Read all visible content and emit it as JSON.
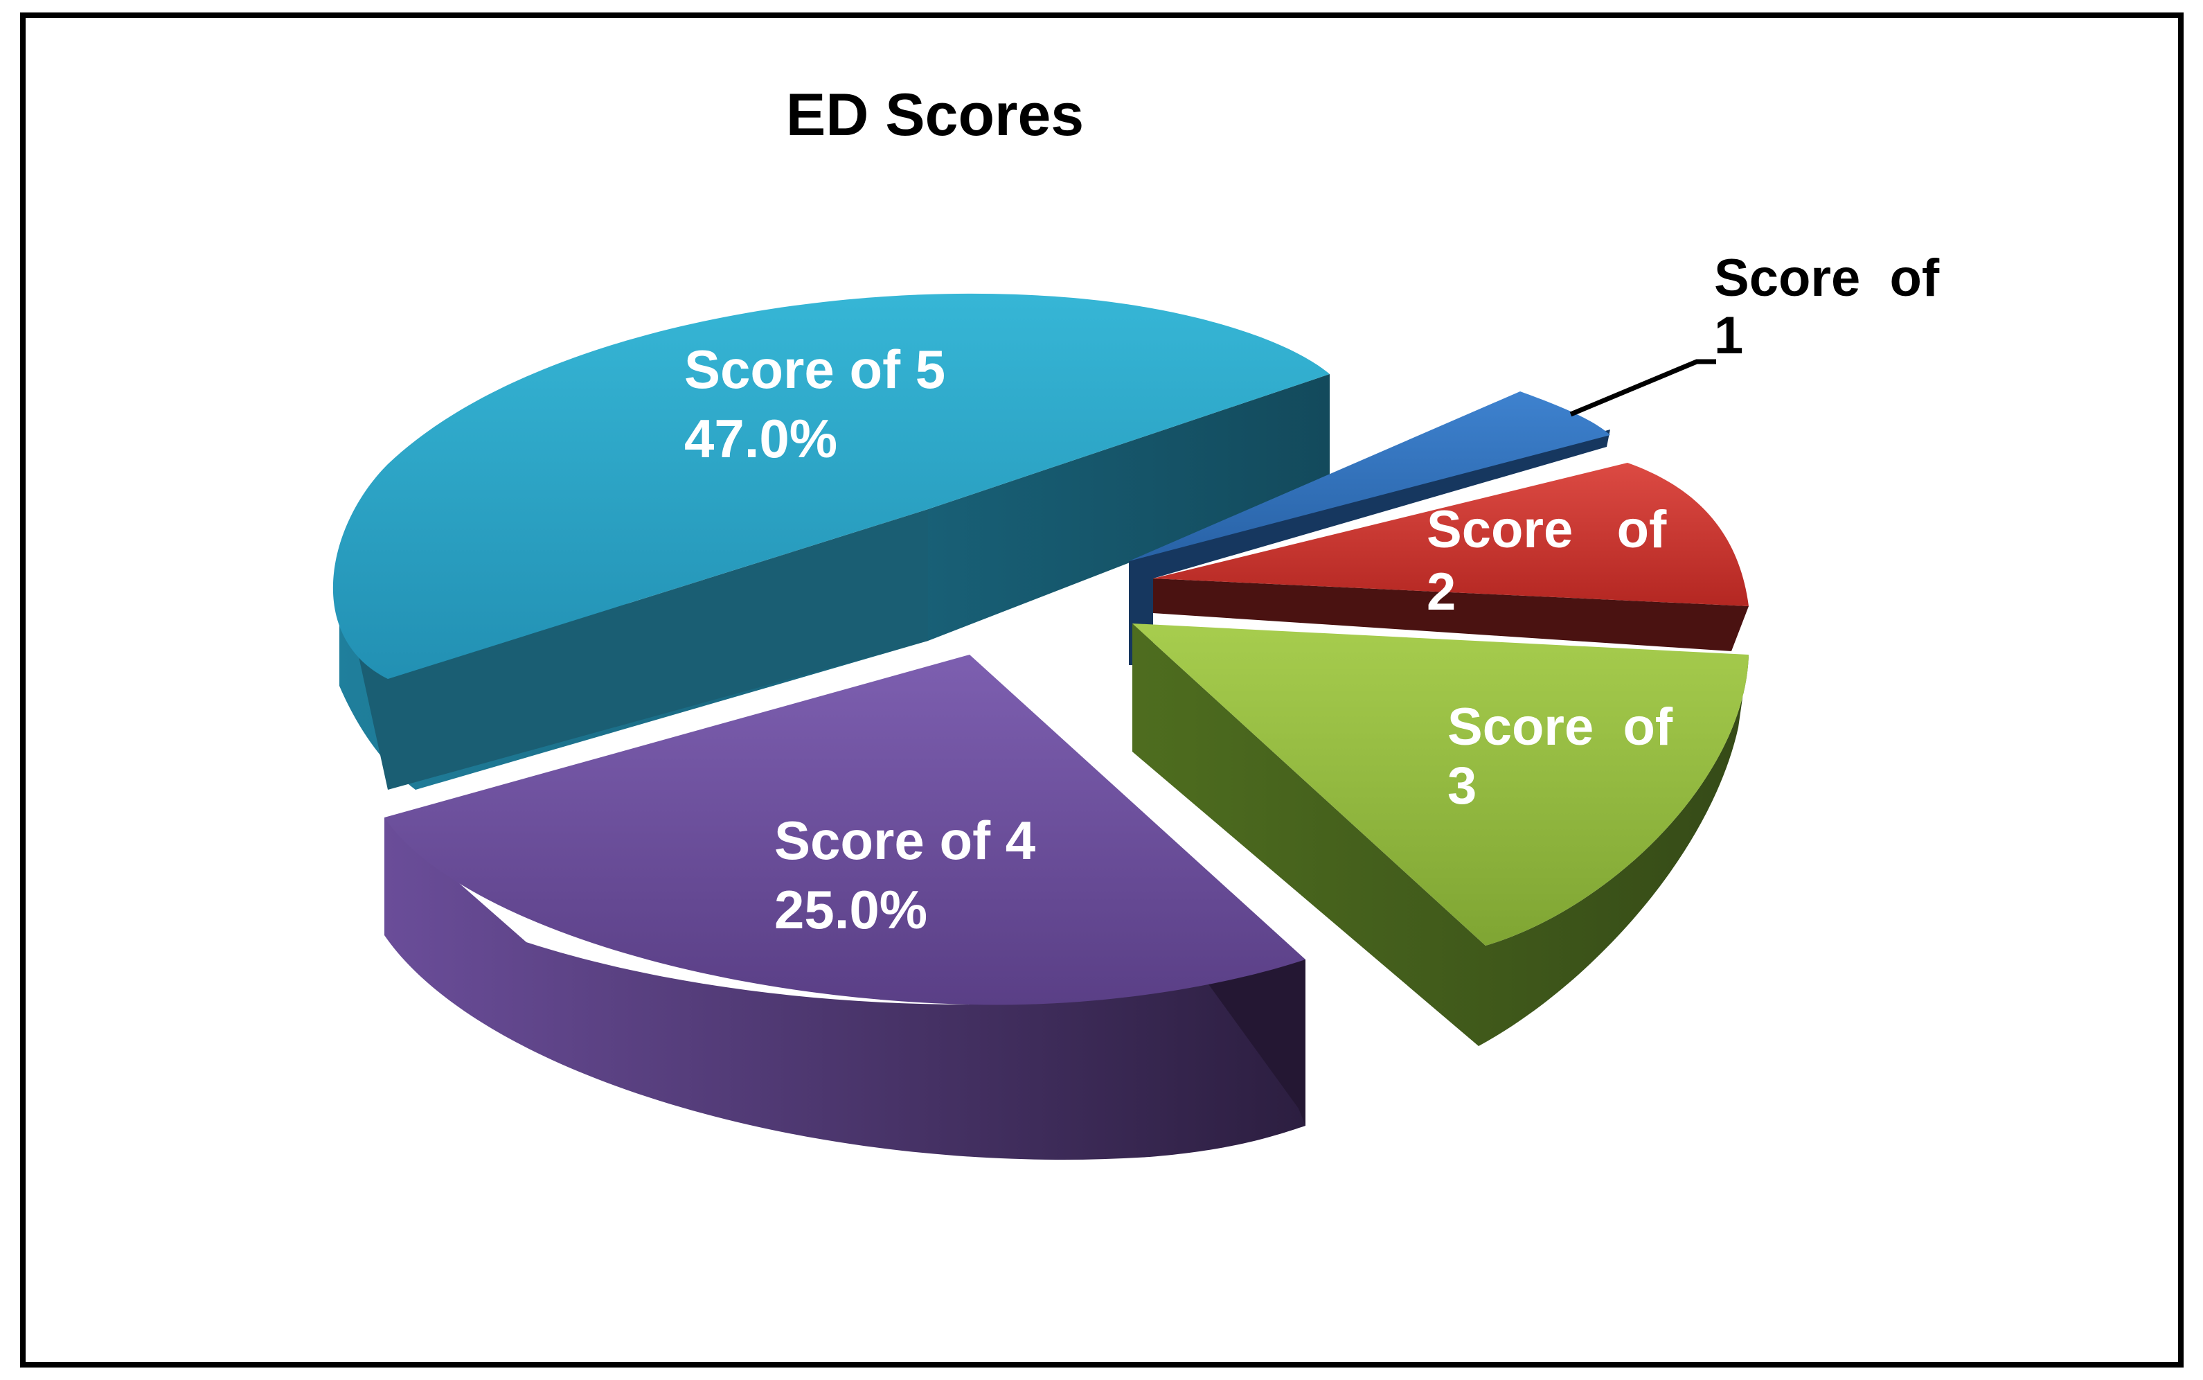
{
  "chart_data": {
    "type": "pie",
    "title": "ED Scores",
    "style": "3d-exploded",
    "slices": [
      {
        "key": "score1",
        "label": "Score of 1",
        "label_lines": [
          "Score  of",
          "1"
        ],
        "value": 3,
        "value_label": "",
        "color": "#2e6db8"
      },
      {
        "key": "score2",
        "label": "Score of 2",
        "label_lines": [
          "Score   of",
          "2"
        ],
        "value": 9,
        "value_label": "",
        "color": "#c7302c"
      },
      {
        "key": "score3",
        "label": "Score of 3",
        "label_lines": [
          "Score  of",
          "3"
        ],
        "value": 16,
        "value_label": "",
        "color": "#8db538"
      },
      {
        "key": "score4",
        "label": "Score of 4",
        "label_lines": [
          "Score of 4",
          "25.0%"
        ],
        "value": 25.0,
        "value_label": "25.0%",
        "color": "#6b4f9a"
      },
      {
        "key": "score5",
        "label": "Score of 5",
        "label_lines": [
          "Score of 5",
          "47.0%"
        ],
        "value": 47.0,
        "value_label": "47.0%",
        "color": "#2aa2c3"
      }
    ]
  }
}
